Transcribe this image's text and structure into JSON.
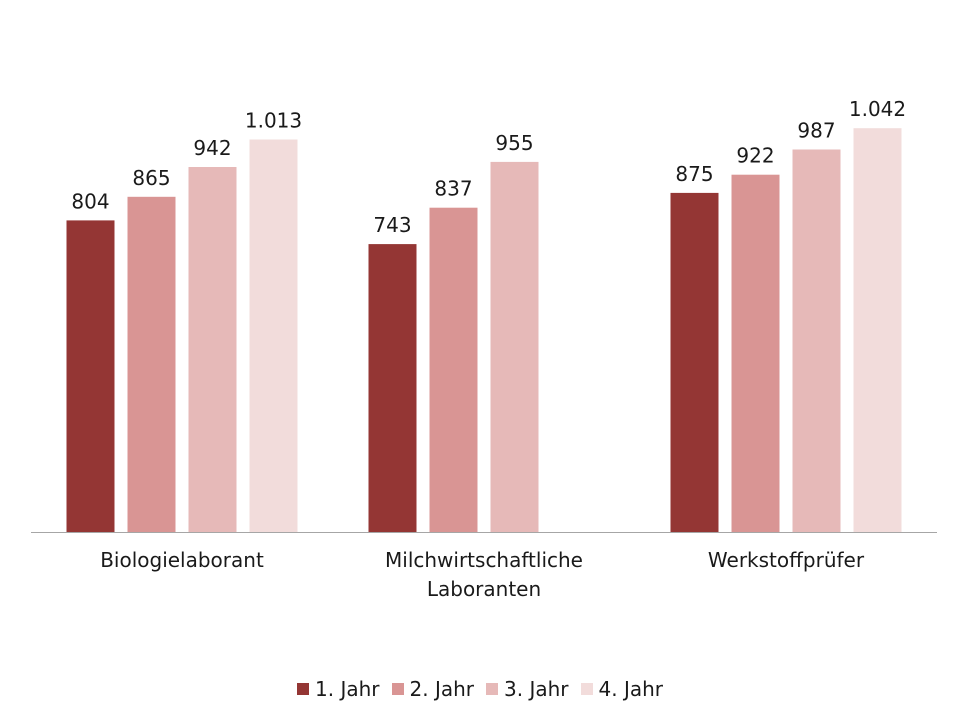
{
  "chart_data": {
    "type": "bar",
    "categories": [
      [
        "Biologielaborant"
      ],
      [
        "Milchwirtschaftliche",
        "Laboranten"
      ],
      [
        "Werkstoffprüfer"
      ]
    ],
    "series": [
      {
        "name": "1. Jahr",
        "color": "#943634",
        "values": [
          804,
          743,
          875
        ],
        "labels": [
          "804",
          "743",
          "875"
        ]
      },
      {
        "name": "2. Jahr",
        "color": "#d99594",
        "values": [
          865,
          837,
          922
        ],
        "labels": [
          "865",
          "837",
          "922"
        ]
      },
      {
        "name": "3. Jahr",
        "color": "#e6b9b8",
        "values": [
          942,
          955,
          987
        ],
        "labels": [
          "942",
          "955",
          "987"
        ]
      },
      {
        "name": "4. Jahr",
        "color": "#f2dcdb",
        "values": [
          1013,
          null,
          1042
        ],
        "labels": [
          "1.013",
          null,
          "1.042"
        ]
      }
    ],
    "ylim": [
      0,
      1200
    ],
    "grid": false,
    "legend_position": "bottom"
  }
}
